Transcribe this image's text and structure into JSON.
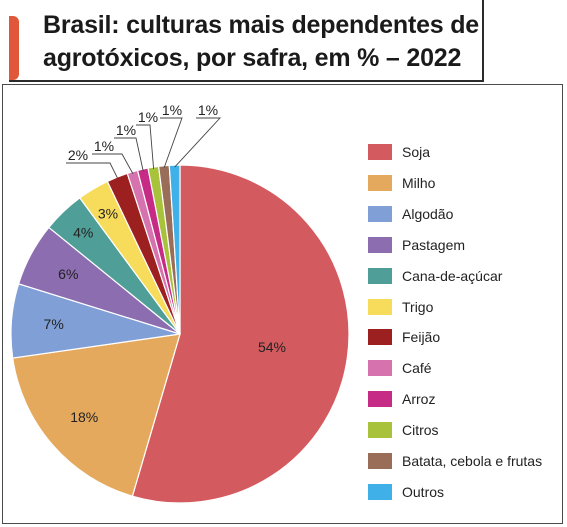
{
  "title": "Brasil: culturas mais dependentes de agrotóxicos, por safra, em % – 2022",
  "chart_data": {
    "type": "pie",
    "title": "Brasil: culturas mais dependentes de agrotóxicos, por safra, em % – 2022",
    "legend_position": "right",
    "start_angle_deg": 0,
    "direction": "clockwise",
    "slices": [
      {
        "label": "Soja",
        "value": 54,
        "display": "54%",
        "color": "#d35a5e"
      },
      {
        "label": "Milho",
        "value": 18,
        "display": "18%",
        "color": "#e5a95e"
      },
      {
        "label": "Algodão",
        "value": 7,
        "display": "7%",
        "color": "#7f9fd6"
      },
      {
        "label": "Pastagem",
        "value": 6,
        "display": "6%",
        "color": "#8c6db0"
      },
      {
        "label": "Cana-de-açúcar",
        "value": 4,
        "display": "4%",
        "color": "#4f9e97"
      },
      {
        "label": "Trigo",
        "value": 3,
        "display": "3%",
        "color": "#f7dc5c"
      },
      {
        "label": "Feijão",
        "value": 2,
        "display": "2%",
        "color": "#9c2020"
      },
      {
        "label": "Café",
        "value": 1,
        "display": "1%",
        "color": "#d672ad"
      },
      {
        "label": "Arroz",
        "value": 1,
        "display": "1%",
        "color": "#c62b86"
      },
      {
        "label": "Citros",
        "value": 1,
        "display": "1%",
        "color": "#a9c23b"
      },
      {
        "label": "Batata, cebola e frutas",
        "value": 1,
        "display": "1%",
        "color": "#9a6d58"
      },
      {
        "label": "Outros",
        "value": 1,
        "display": "1%",
        "color": "#3fb0e8"
      }
    ]
  }
}
